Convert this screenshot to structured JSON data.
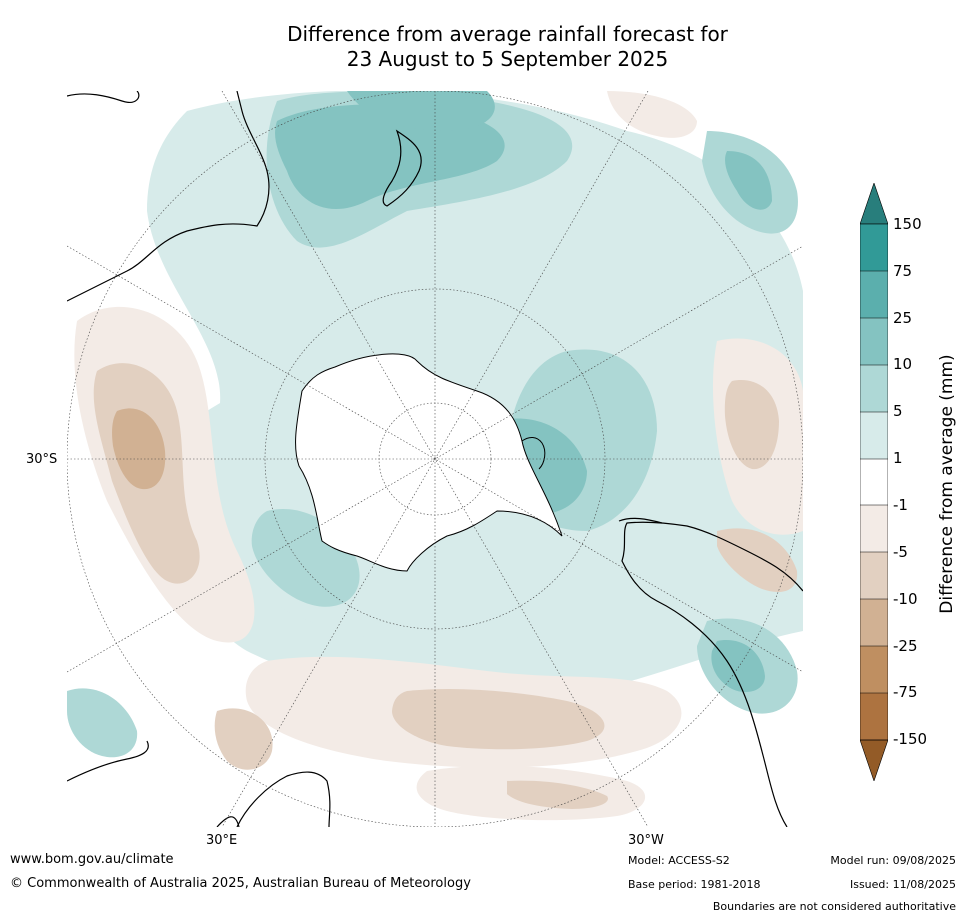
{
  "title": {
    "line1": "Difference from average rainfall forecast for",
    "line2": "23 August to 5 September 2025"
  },
  "map": {
    "projection": "south polar stereographic",
    "lat_labels": [
      "30°S"
    ],
    "lon_labels": [
      "30°E",
      "30°W"
    ]
  },
  "legend": {
    "title": "Difference from average (mm)",
    "ticks": [
      "150",
      "75",
      "25",
      "10",
      "5",
      "1",
      "-1",
      "-5",
      "-10",
      "-25",
      "-75",
      "-150"
    ],
    "colors": [
      "#287e7c",
      "#319a97",
      "#5bafad",
      "#84c3c1",
      "#aed8d6",
      "#d7ebea",
      "#ffffff",
      "#f3ebe6",
      "#e2d0c1",
      "#d1b193",
      "#bf8f61",
      "#ad7340",
      "#935b27"
    ]
  },
  "footer": {
    "website": "www.bom.gov.au/climate",
    "copyright": "© Commonwealth of Australia 2025, Australian Bureau of Meteorology",
    "model": "Model: ACCESS-S2",
    "base_period": "Base period: 1981-2018",
    "model_run": "Model run: 09/08/2025",
    "issued": "Issued: 11/08/2025",
    "disclaimer": "Boundaries are not considered authoritative"
  }
}
